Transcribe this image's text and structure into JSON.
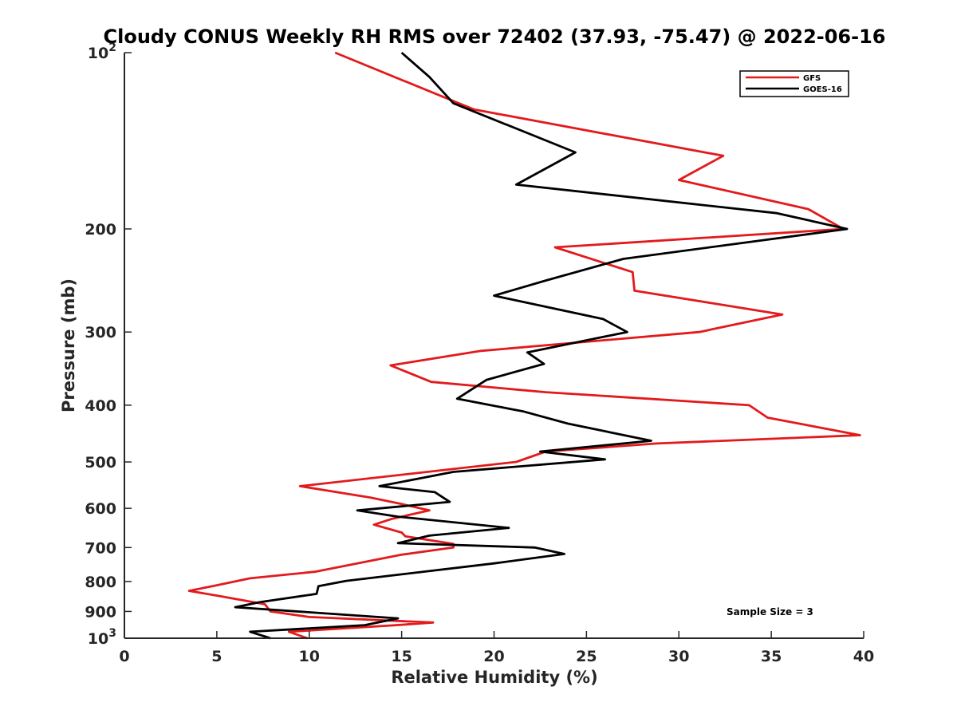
{
  "chart_data": {
    "type": "line",
    "title": "Cloudy CONUS Weekly RH RMS over 72402 (37.93, -75.47) @ 2022-06-16",
    "xlabel": "Relative Humidity (%)",
    "ylabel": "Pressure (mb)",
    "xlim": [
      0,
      40
    ],
    "ylim": [
      100,
      1000
    ],
    "y_scale": "log",
    "y_reversed": true,
    "grid": false,
    "legend_position": "top-right",
    "x_ticks": [
      {
        "value": 0,
        "label": "0"
      },
      {
        "value": 5,
        "label": "5"
      },
      {
        "value": 10,
        "label": "10"
      },
      {
        "value": 15,
        "label": "15"
      },
      {
        "value": 20,
        "label": "20"
      },
      {
        "value": 25,
        "label": "25"
      },
      {
        "value": 30,
        "label": "30"
      },
      {
        "value": 35,
        "label": "35"
      },
      {
        "value": 40,
        "label": "40"
      }
    ],
    "y_ticks": [
      {
        "value": 100,
        "label": "10",
        "exp": "2"
      },
      {
        "value": 200,
        "label": "200",
        "exp": ""
      },
      {
        "value": 300,
        "label": "300",
        "exp": ""
      },
      {
        "value": 400,
        "label": "400",
        "exp": ""
      },
      {
        "value": 500,
        "label": "500",
        "exp": ""
      },
      {
        "value": 600,
        "label": "600",
        "exp": ""
      },
      {
        "value": 700,
        "label": "700",
        "exp": ""
      },
      {
        "value": 800,
        "label": "800",
        "exp": ""
      },
      {
        "value": 900,
        "label": "900",
        "exp": ""
      },
      {
        "value": 1000,
        "label": "10",
        "exp": "3"
      }
    ],
    "series": [
      {
        "name": "GFS",
        "color": "#e31a1c",
        "points": [
          [
            11.4,
            100
          ],
          [
            18.9,
            125
          ],
          [
            32.4,
            150
          ],
          [
            30.0,
            165
          ],
          [
            37.0,
            185
          ],
          [
            38.9,
            200
          ],
          [
            23.3,
            215
          ],
          [
            27.5,
            237
          ],
          [
            27.6,
            255
          ],
          [
            35.6,
            280
          ],
          [
            31.1,
            300
          ],
          [
            19.3,
            323
          ],
          [
            14.4,
            342
          ],
          [
            16.6,
            365
          ],
          [
            22.8,
            380
          ],
          [
            33.8,
            400
          ],
          [
            34.8,
            420
          ],
          [
            39.8,
            450
          ],
          [
            28.8,
            465
          ],
          [
            22.8,
            480
          ],
          [
            21.2,
            500
          ],
          [
            9.5,
            550
          ],
          [
            13.3,
            575
          ],
          [
            15.0,
            590
          ],
          [
            16.5,
            605
          ],
          [
            14.5,
            625
          ],
          [
            13.5,
            640
          ],
          [
            15.0,
            660
          ],
          [
            15.2,
            670
          ],
          [
            17.8,
            690
          ],
          [
            17.8,
            700
          ],
          [
            15.0,
            720
          ],
          [
            10.3,
            770
          ],
          [
            6.8,
            790
          ],
          [
            5.0,
            812
          ],
          [
            3.5,
            830
          ],
          [
            5.2,
            848
          ],
          [
            7.6,
            875
          ],
          [
            7.9,
            900
          ],
          [
            10.0,
            920
          ],
          [
            16.7,
            940
          ],
          [
            14.7,
            950
          ],
          [
            8.9,
            975
          ],
          [
            9.9,
            1000
          ]
        ]
      },
      {
        "name": "GOES-16",
        "color": "#000000",
        "points": [
          [
            15.0,
            100
          ],
          [
            16.5,
            110
          ],
          [
            17.8,
            122
          ],
          [
            24.4,
            148
          ],
          [
            21.2,
            168
          ],
          [
            35.3,
            188
          ],
          [
            39.1,
            200
          ],
          [
            27.0,
            225
          ],
          [
            22.8,
            245
          ],
          [
            20.0,
            260
          ],
          [
            25.9,
            285
          ],
          [
            27.2,
            300
          ],
          [
            21.8,
            325
          ],
          [
            22.7,
            340
          ],
          [
            19.6,
            362
          ],
          [
            18.0,
            390
          ],
          [
            21.6,
            410
          ],
          [
            24.0,
            430
          ],
          [
            28.5,
            460
          ],
          [
            22.5,
            480
          ],
          [
            26.0,
            495
          ],
          [
            17.8,
            520
          ],
          [
            13.8,
            550
          ],
          [
            16.8,
            563
          ],
          [
            17.6,
            585
          ],
          [
            12.6,
            605
          ],
          [
            14.8,
            620
          ],
          [
            20.8,
            648
          ],
          [
            16.5,
            668
          ],
          [
            14.8,
            688
          ],
          [
            22.2,
            700
          ],
          [
            23.8,
            718
          ],
          [
            20.0,
            745
          ],
          [
            12.0,
            798
          ],
          [
            10.5,
            815
          ],
          [
            10.4,
            840
          ],
          [
            7.3,
            868
          ],
          [
            6.0,
            885
          ],
          [
            14.8,
            925
          ],
          [
            13.0,
            950
          ],
          [
            6.8,
            975
          ],
          [
            7.9,
            1000
          ]
        ]
      }
    ],
    "annotation": "Sample Size = 3"
  }
}
